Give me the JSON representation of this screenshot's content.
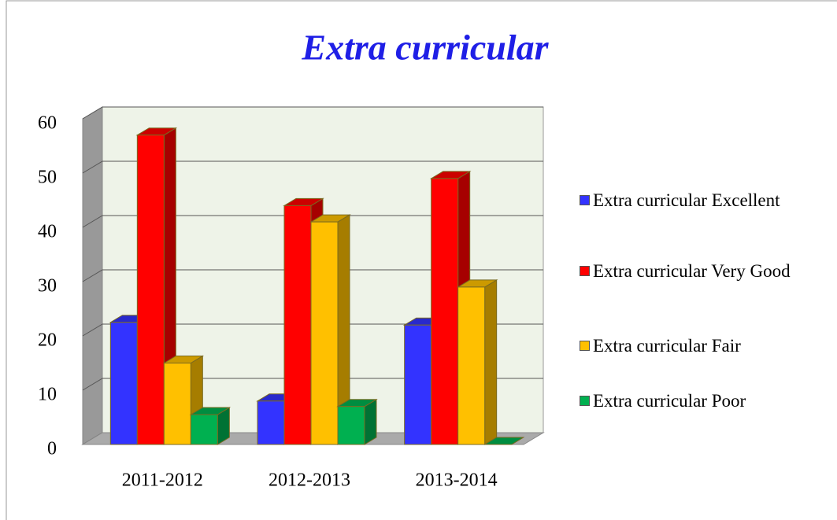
{
  "chart_data": {
    "type": "bar",
    "title": "Extra curricular",
    "categories": [
      "2011-2012",
      "2012-2013",
      "2013-2014"
    ],
    "series": [
      {
        "name": "Extra curricular Excellent",
        "color": "#3333ff",
        "values": [
          22.5,
          8,
          22
        ]
      },
      {
        "name": "Extra curricular Very Good",
        "color": "#ff0000",
        "values": [
          57,
          44,
          49
        ]
      },
      {
        "name": "Extra curricular Fair",
        "color": "#ffc000",
        "values": [
          15,
          41,
          29
        ]
      },
      {
        "name": "Extra curricular Poor",
        "color": "#00b050",
        "values": [
          5.5,
          7,
          0
        ]
      }
    ],
    "ylim": [
      0,
      60
    ],
    "yticks": [
      0,
      10,
      20,
      30,
      40,
      50,
      60
    ],
    "grid": true,
    "legend": "right"
  }
}
